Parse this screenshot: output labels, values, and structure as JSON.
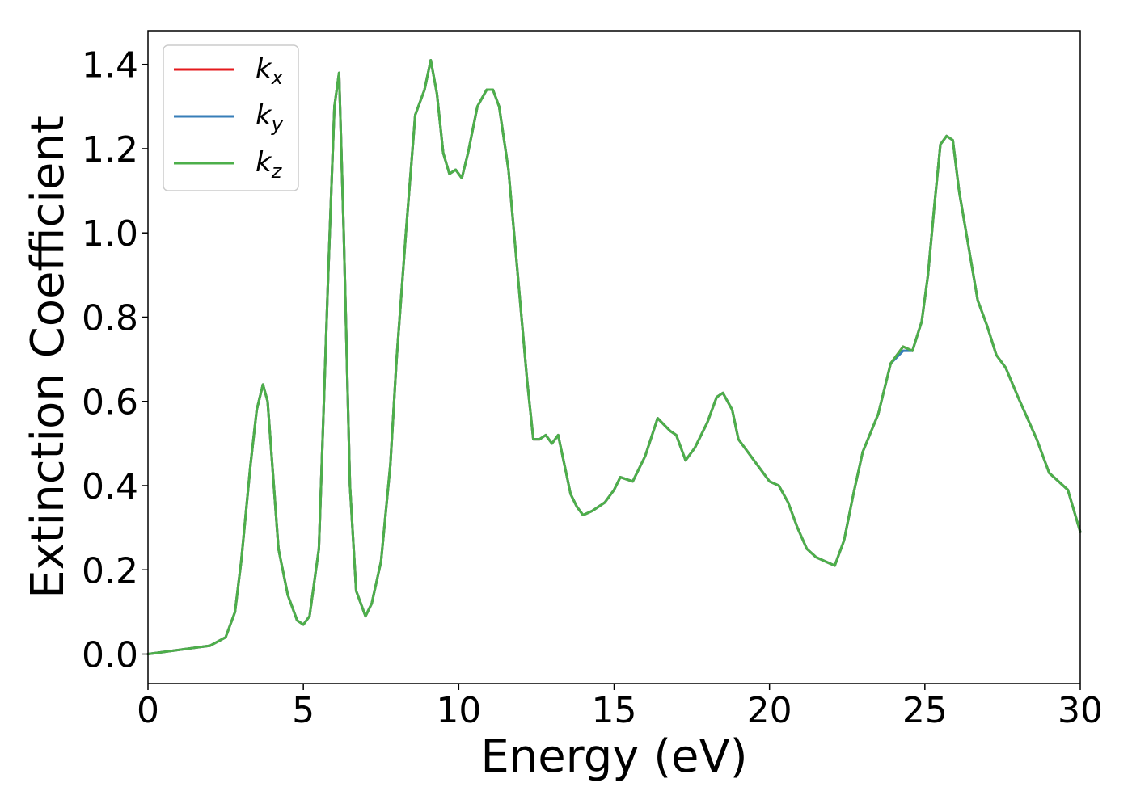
{
  "chart_data": {
    "type": "line",
    "xlabel": "Energy (eV)",
    "ylabel": "Extinction Coefficient",
    "xlim": [
      0,
      30
    ],
    "ylim": [
      -0.07,
      1.48
    ],
    "x_ticks": [
      0,
      5,
      10,
      15,
      20,
      25,
      30
    ],
    "y_ticks": [
      0.0,
      0.2,
      0.4,
      0.6,
      0.8,
      1.0,
      1.2,
      1.4
    ],
    "x_tick_labels": [
      "0",
      "5",
      "10",
      "15",
      "20",
      "25",
      "30"
    ],
    "y_tick_labels": [
      "0.0",
      "0.2",
      "0.4",
      "0.6",
      "0.8",
      "1.0",
      "1.2",
      "1.4"
    ],
    "grid": false,
    "legend_position": "top-left",
    "x": [
      0,
      1,
      2,
      2.5,
      2.8,
      3.0,
      3.3,
      3.5,
      3.7,
      3.85,
      4.0,
      4.2,
      4.5,
      4.8,
      5.0,
      5.2,
      5.5,
      5.8,
      6.0,
      6.15,
      6.3,
      6.5,
      6.7,
      7.0,
      7.2,
      7.5,
      7.8,
      8.0,
      8.3,
      8.6,
      8.9,
      9.1,
      9.3,
      9.5,
      9.7,
      9.9,
      10.1,
      10.3,
      10.6,
      10.9,
      11.1,
      11.3,
      11.6,
      11.9,
      12.2,
      12.4,
      12.6,
      12.8,
      13.0,
      13.2,
      13.4,
      13.6,
      13.8,
      14.0,
      14.3,
      14.7,
      15.0,
      15.2,
      15.6,
      16.0,
      16.4,
      16.8,
      17.0,
      17.3,
      17.6,
      18.0,
      18.3,
      18.5,
      18.8,
      19.0,
      19.3,
      19.6,
      20.0,
      20.3,
      20.6,
      20.9,
      21.2,
      21.5,
      21.8,
      22.1,
      22.4,
      22.7,
      23.0,
      23.5,
      23.9,
      24.3,
      24.6,
      24.9,
      25.1,
      25.3,
      25.5,
      25.7,
      25.9,
      26.1,
      26.4,
      26.7,
      27.0,
      27.3,
      27.6,
      28.0,
      28.3,
      28.6,
      29.0,
      29.3,
      29.6,
      30.0
    ],
    "series": [
      {
        "name": "k_x",
        "label_base": "k",
        "label_sub": "x",
        "color": "#e41a1c",
        "values": [
          0.0,
          0.01,
          0.02,
          0.04,
          0.1,
          0.22,
          0.45,
          0.58,
          0.64,
          0.6,
          0.45,
          0.25,
          0.14,
          0.08,
          0.07,
          0.09,
          0.25,
          0.9,
          1.3,
          1.38,
          1.0,
          0.4,
          0.15,
          0.09,
          0.12,
          0.22,
          0.45,
          0.7,
          1.0,
          1.28,
          1.34,
          1.41,
          1.33,
          1.19,
          1.14,
          1.15,
          1.13,
          1.19,
          1.3,
          1.34,
          1.34,
          1.3,
          1.15,
          0.9,
          0.65,
          0.51,
          0.51,
          0.52,
          0.5,
          0.52,
          0.45,
          0.38,
          0.35,
          0.33,
          0.34,
          0.36,
          0.39,
          0.42,
          0.41,
          0.47,
          0.56,
          0.53,
          0.52,
          0.46,
          0.49,
          0.55,
          0.61,
          0.62,
          0.58,
          0.51,
          0.48,
          0.45,
          0.41,
          0.4,
          0.36,
          0.3,
          0.25,
          0.23,
          0.22,
          0.21,
          0.27,
          0.38,
          0.48,
          0.57,
          0.69,
          0.73,
          0.72,
          0.79,
          0.9,
          1.06,
          1.21,
          1.23,
          1.22,
          1.1,
          0.97,
          0.84,
          0.78,
          0.71,
          0.68,
          0.61,
          0.56,
          0.51,
          0.43,
          0.41,
          0.39,
          0.29
        ]
      },
      {
        "name": "k_y",
        "label_base": "k",
        "label_sub": "y",
        "color": "#377eb8",
        "values": [
          0.0,
          0.01,
          0.02,
          0.04,
          0.1,
          0.22,
          0.45,
          0.58,
          0.64,
          0.6,
          0.45,
          0.25,
          0.14,
          0.08,
          0.07,
          0.09,
          0.25,
          0.9,
          1.3,
          1.38,
          1.0,
          0.4,
          0.15,
          0.09,
          0.12,
          0.22,
          0.45,
          0.7,
          1.0,
          1.28,
          1.34,
          1.41,
          1.33,
          1.19,
          1.14,
          1.15,
          1.13,
          1.19,
          1.3,
          1.34,
          1.34,
          1.3,
          1.15,
          0.9,
          0.65,
          0.51,
          0.51,
          0.52,
          0.5,
          0.52,
          0.45,
          0.38,
          0.35,
          0.33,
          0.34,
          0.36,
          0.39,
          0.42,
          0.41,
          0.47,
          0.56,
          0.53,
          0.52,
          0.46,
          0.49,
          0.55,
          0.61,
          0.62,
          0.58,
          0.51,
          0.48,
          0.45,
          0.41,
          0.4,
          0.36,
          0.3,
          0.25,
          0.23,
          0.22,
          0.21,
          0.27,
          0.38,
          0.48,
          0.57,
          0.69,
          0.72,
          0.72,
          0.79,
          0.9,
          1.06,
          1.21,
          1.23,
          1.22,
          1.1,
          0.97,
          0.84,
          0.78,
          0.71,
          0.68,
          0.61,
          0.56,
          0.51,
          0.43,
          0.41,
          0.39,
          0.29
        ]
      },
      {
        "name": "k_z",
        "label_base": "k",
        "label_sub": "z",
        "color": "#4daf4a",
        "values": [
          0.0,
          0.01,
          0.02,
          0.04,
          0.1,
          0.22,
          0.45,
          0.58,
          0.64,
          0.6,
          0.45,
          0.25,
          0.14,
          0.08,
          0.07,
          0.09,
          0.25,
          0.9,
          1.3,
          1.38,
          1.0,
          0.4,
          0.15,
          0.09,
          0.12,
          0.22,
          0.45,
          0.7,
          1.0,
          1.28,
          1.34,
          1.41,
          1.33,
          1.19,
          1.14,
          1.15,
          1.13,
          1.19,
          1.3,
          1.34,
          1.34,
          1.3,
          1.15,
          0.9,
          0.65,
          0.51,
          0.51,
          0.52,
          0.5,
          0.52,
          0.45,
          0.38,
          0.35,
          0.33,
          0.34,
          0.36,
          0.39,
          0.42,
          0.41,
          0.47,
          0.56,
          0.53,
          0.52,
          0.46,
          0.49,
          0.55,
          0.61,
          0.62,
          0.58,
          0.51,
          0.48,
          0.45,
          0.41,
          0.4,
          0.36,
          0.3,
          0.25,
          0.23,
          0.22,
          0.21,
          0.27,
          0.38,
          0.48,
          0.57,
          0.69,
          0.73,
          0.72,
          0.79,
          0.9,
          1.06,
          1.21,
          1.23,
          1.22,
          1.1,
          0.97,
          0.84,
          0.78,
          0.71,
          0.68,
          0.61,
          0.56,
          0.51,
          0.43,
          0.41,
          0.39,
          0.29
        ]
      }
    ]
  }
}
